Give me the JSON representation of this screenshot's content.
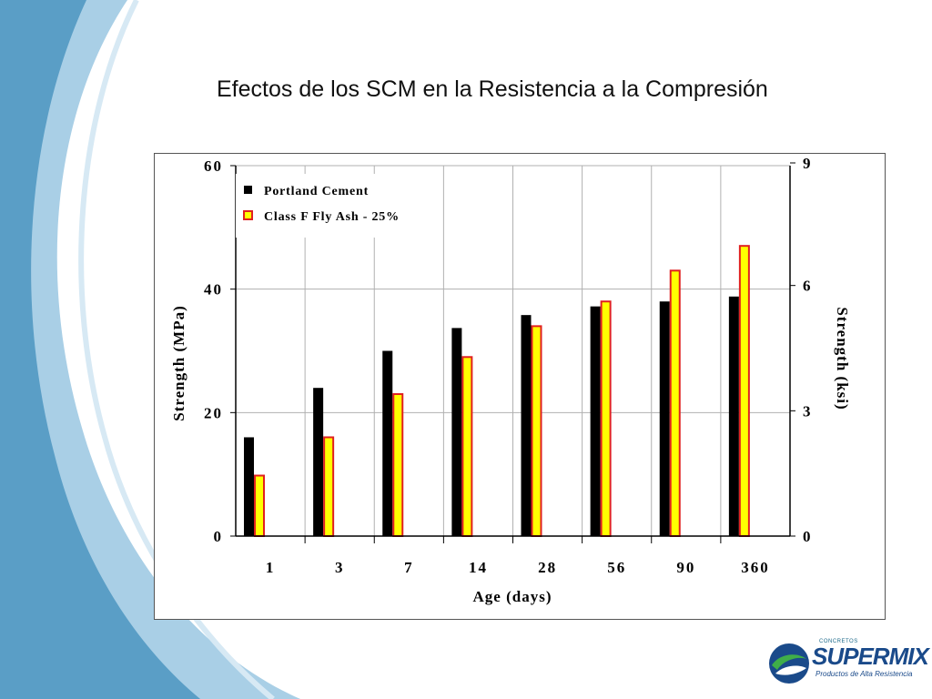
{
  "slide": {
    "title": "Efectos de los SCM en la Resistencia a la Compresión"
  },
  "logo": {
    "top_text": "CONCRETOS",
    "name": "SUPERMIX",
    "tagline": "Productos de Alta Resistencia"
  },
  "colors": {
    "portland": "#000000",
    "flyash_fill": "#ffff00",
    "flyash_edge": "#e02020",
    "grid": "#b0b0b0",
    "swoosh_dark": "#5a9ec6",
    "swoosh_light": "#a9cfe6"
  },
  "chart_data": {
    "type": "bar",
    "categories": [
      "1",
      "3",
      "7",
      "14",
      "28",
      "56",
      "90",
      "360"
    ],
    "series": [
      {
        "name": "Portland Cement",
        "values": [
          16,
          24,
          30,
          33.7,
          35.8,
          37.2,
          38,
          38.8
        ]
      },
      {
        "name": "Class F Fly Ash - 25%",
        "values": [
          9.8,
          16,
          23,
          29,
          34,
          38,
          43,
          47
        ]
      }
    ],
    "xlabel": "Age (days)",
    "ylabel": "Strength (MPa)",
    "ylim": [
      0,
      60
    ],
    "yticks": [
      "0",
      "20",
      "40",
      "60"
    ],
    "y2label": "Strength (ksi)",
    "y2lim": [
      0,
      9
    ],
    "y2ticks": [
      "0",
      "3",
      "6",
      "9"
    ],
    "legend_position": "top-left",
    "grid": true
  }
}
